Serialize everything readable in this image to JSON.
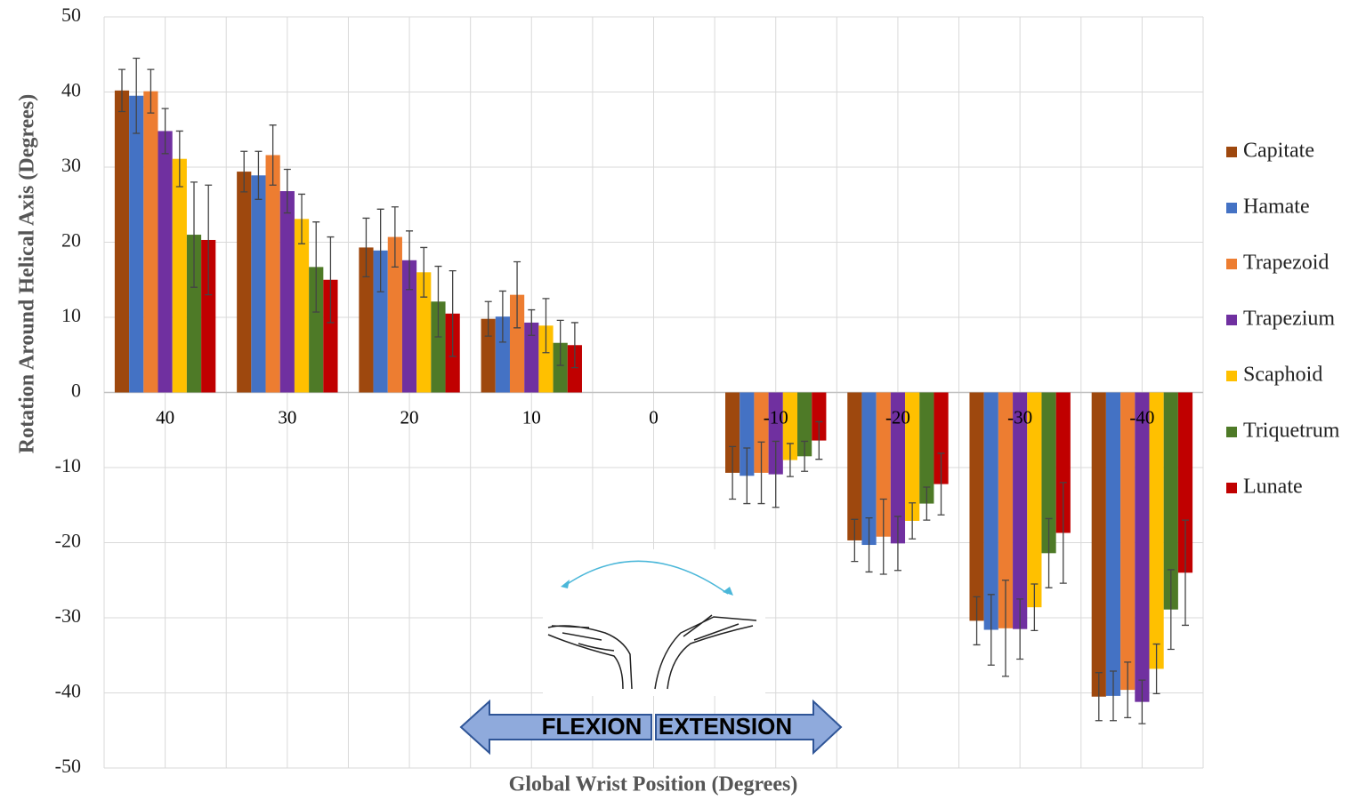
{
  "chart_data": {
    "type": "bar",
    "y_label": "Rotation Around Helical Axis (Degrees)",
    "x_label": "Global Wrist Position (Degrees)",
    "categories": [
      "40",
      "30",
      "20",
      "10",
      "0",
      "-10",
      "-20",
      "-30",
      "-40"
    ],
    "ylim": [
      -50,
      50
    ],
    "yticks": [
      -50,
      -40,
      -30,
      -20,
      -10,
      0,
      10,
      20,
      30,
      40,
      50
    ],
    "grid": true,
    "legend": "right",
    "annotations": [
      "FLEXION",
      "EXTENSION"
    ],
    "series": [
      {
        "name": "Capitate",
        "color": "#9e480e",
        "values": [
          40.2,
          29.4,
          19.3,
          9.8,
          null,
          -10.7,
          -19.7,
          -30.4,
          -40.5
        ],
        "errors": [
          2.8,
          2.7,
          3.9,
          2.3,
          null,
          3.5,
          2.8,
          3.2,
          3.2
        ]
      },
      {
        "name": "Hamate",
        "color": "#4472c4",
        "values": [
          39.5,
          28.9,
          18.9,
          10.1,
          null,
          -11.1,
          -20.3,
          -31.6,
          -40.4
        ],
        "errors": [
          5.0,
          3.2,
          5.5,
          3.4,
          null,
          3.7,
          3.6,
          4.7,
          3.3
        ]
      },
      {
        "name": "Trapezoid",
        "color": "#ed7d31",
        "values": [
          40.1,
          31.6,
          20.7,
          13.0,
          null,
          -10.7,
          -19.2,
          -31.4,
          -39.6
        ],
        "errors": [
          2.9,
          4.0,
          4.0,
          4.4,
          null,
          4.1,
          5.0,
          6.4,
          3.7
        ]
      },
      {
        "name": "Trapezium",
        "color": "#7030a0",
        "values": [
          34.8,
          26.8,
          17.6,
          9.3,
          null,
          -10.9,
          -20.1,
          -31.5,
          -41.2
        ],
        "errors": [
          3.0,
          2.9,
          3.9,
          1.7,
          null,
          4.4,
          3.6,
          4.0,
          2.9
        ]
      },
      {
        "name": "Scaphoid",
        "color": "#ffc000",
        "values": [
          31.1,
          23.1,
          16.0,
          8.9,
          null,
          -9.0,
          -17.1,
          -28.6,
          -36.8
        ],
        "errors": [
          3.7,
          3.3,
          3.3,
          3.6,
          null,
          2.2,
          2.4,
          3.1,
          3.3
        ]
      },
      {
        "name": "Triquetrum",
        "color": "#4e7a27",
        "values": [
          21.0,
          16.7,
          12.1,
          6.6,
          null,
          -8.5,
          -14.8,
          -21.4,
          -28.9
        ],
        "errors": [
          7.0,
          6.0,
          4.7,
          3.0,
          null,
          2.0,
          2.2,
          4.6,
          5.3
        ]
      },
      {
        "name": "Lunate",
        "color": "#c00000",
        "values": [
          20.3,
          15.0,
          10.5,
          6.3,
          null,
          -6.4,
          -12.2,
          -18.7,
          -24.0
        ],
        "errors": [
          7.3,
          5.7,
          5.7,
          3.0,
          null,
          2.5,
          4.1,
          6.7,
          7.0
        ]
      }
    ]
  }
}
